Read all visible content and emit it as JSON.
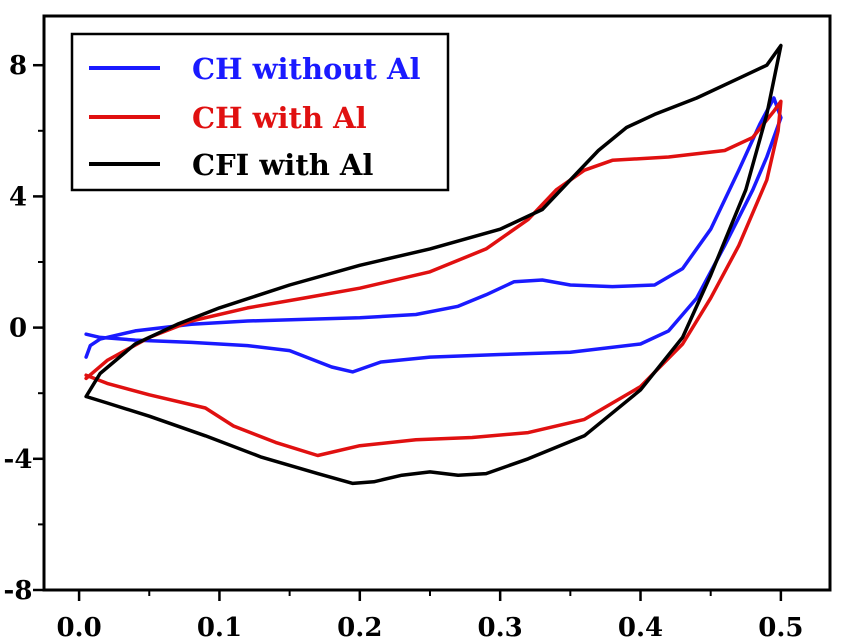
{
  "chart_data": {
    "type": "line",
    "title": "",
    "xlabel": "",
    "ylabel": "",
    "xlim": [
      -0.025,
      0.535
    ],
    "ylim": [
      -8,
      9.5
    ],
    "x_ticks": [
      0.0,
      0.1,
      0.2,
      0.3,
      0.4,
      0.5
    ],
    "x_tick_labels": [
      "0.0",
      "0.1",
      "0.2",
      "0.3",
      "0.4",
      "0.5"
    ],
    "y_ticks": [
      -8,
      -4,
      0,
      4,
      8
    ],
    "y_tick_labels": [
      "-8",
      "-4",
      "0",
      "4",
      "8"
    ],
    "grid": false,
    "legend_position": "top-left",
    "series": [
      {
        "name": "CH without Al",
        "color": "#1a1aff",
        "points": [
          [
            0.005,
            -0.9
          ],
          [
            0.008,
            -0.55
          ],
          [
            0.015,
            -0.35
          ],
          [
            0.04,
            -0.1
          ],
          [
            0.08,
            0.1
          ],
          [
            0.12,
            0.2
          ],
          [
            0.16,
            0.25
          ],
          [
            0.2,
            0.3
          ],
          [
            0.24,
            0.4
          ],
          [
            0.27,
            0.65
          ],
          [
            0.29,
            1.0
          ],
          [
            0.31,
            1.4
          ],
          [
            0.33,
            1.45
          ],
          [
            0.35,
            1.3
          ],
          [
            0.38,
            1.25
          ],
          [
            0.41,
            1.3
          ],
          [
            0.43,
            1.8
          ],
          [
            0.45,
            3.0
          ],
          [
            0.47,
            4.8
          ],
          [
            0.485,
            6.2
          ],
          [
            0.495,
            7.0
          ],
          [
            0.5,
            6.4
          ],
          [
            0.49,
            5.2
          ],
          [
            0.48,
            4.2
          ],
          [
            0.46,
            2.5
          ],
          [
            0.44,
            0.9
          ],
          [
            0.42,
            -0.1
          ],
          [
            0.4,
            -0.5
          ],
          [
            0.35,
            -0.75
          ],
          [
            0.3,
            -0.82
          ],
          [
            0.25,
            -0.9
          ],
          [
            0.215,
            -1.05
          ],
          [
            0.195,
            -1.35
          ],
          [
            0.18,
            -1.2
          ],
          [
            0.15,
            -0.7
          ],
          [
            0.12,
            -0.55
          ],
          [
            0.08,
            -0.45
          ],
          [
            0.04,
            -0.38
          ],
          [
            0.015,
            -0.3
          ],
          [
            0.005,
            -0.2
          ]
        ]
      },
      {
        "name": "CH with Al",
        "color": "#e01010",
        "points": [
          [
            0.005,
            -1.55
          ],
          [
            0.02,
            -1.0
          ],
          [
            0.05,
            -0.3
          ],
          [
            0.08,
            0.2
          ],
          [
            0.12,
            0.6
          ],
          [
            0.16,
            0.9
          ],
          [
            0.2,
            1.2
          ],
          [
            0.25,
            1.7
          ],
          [
            0.29,
            2.4
          ],
          [
            0.32,
            3.3
          ],
          [
            0.34,
            4.2
          ],
          [
            0.36,
            4.8
          ],
          [
            0.38,
            5.1
          ],
          [
            0.42,
            5.2
          ],
          [
            0.46,
            5.4
          ],
          [
            0.48,
            5.8
          ],
          [
            0.495,
            6.6
          ],
          [
            0.5,
            6.9
          ],
          [
            0.498,
            6.0
          ],
          [
            0.49,
            4.5
          ],
          [
            0.47,
            2.5
          ],
          [
            0.45,
            0.9
          ],
          [
            0.43,
            -0.5
          ],
          [
            0.4,
            -1.8
          ],
          [
            0.36,
            -2.8
          ],
          [
            0.32,
            -3.2
          ],
          [
            0.28,
            -3.35
          ],
          [
            0.24,
            -3.42
          ],
          [
            0.2,
            -3.6
          ],
          [
            0.17,
            -3.9
          ],
          [
            0.14,
            -3.5
          ],
          [
            0.11,
            -3.0
          ],
          [
            0.09,
            -2.45
          ],
          [
            0.05,
            -2.05
          ],
          [
            0.02,
            -1.7
          ],
          [
            0.005,
            -1.45
          ]
        ]
      },
      {
        "name": "CFI with Al",
        "color": "#000000",
        "points": [
          [
            0.005,
            -2.1
          ],
          [
            0.015,
            -1.4
          ],
          [
            0.04,
            -0.5
          ],
          [
            0.07,
            0.1
          ],
          [
            0.1,
            0.6
          ],
          [
            0.15,
            1.3
          ],
          [
            0.2,
            1.9
          ],
          [
            0.25,
            2.4
          ],
          [
            0.3,
            3.0
          ],
          [
            0.33,
            3.6
          ],
          [
            0.35,
            4.5
          ],
          [
            0.37,
            5.4
          ],
          [
            0.39,
            6.1
          ],
          [
            0.41,
            6.5
          ],
          [
            0.44,
            7.0
          ],
          [
            0.47,
            7.6
          ],
          [
            0.49,
            8.0
          ],
          [
            0.5,
            8.6
          ],
          [
            0.49,
            6.5
          ],
          [
            0.475,
            4.2
          ],
          [
            0.45,
            1.6
          ],
          [
            0.43,
            -0.3
          ],
          [
            0.4,
            -1.9
          ],
          [
            0.36,
            -3.3
          ],
          [
            0.32,
            -4.0
          ],
          [
            0.29,
            -4.45
          ],
          [
            0.27,
            -4.5
          ],
          [
            0.25,
            -4.4
          ],
          [
            0.23,
            -4.5
          ],
          [
            0.21,
            -4.7
          ],
          [
            0.195,
            -4.75
          ],
          [
            0.17,
            -4.45
          ],
          [
            0.13,
            -3.95
          ],
          [
            0.09,
            -3.3
          ],
          [
            0.05,
            -2.7
          ],
          [
            0.02,
            -2.3
          ],
          [
            0.005,
            -2.1
          ]
        ]
      }
    ]
  }
}
